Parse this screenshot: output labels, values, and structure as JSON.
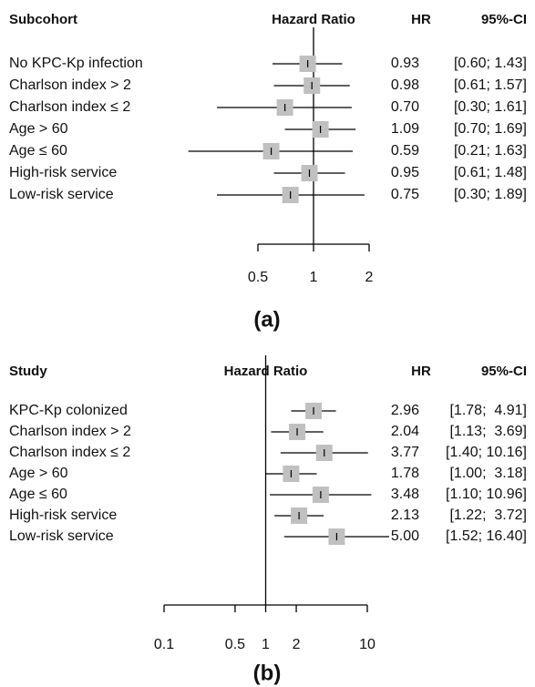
{
  "chart_data": [
    {
      "type": "forest",
      "panel_label": "(a)",
      "row_header": "Subcohort",
      "title": "Hazard Ratio",
      "value_header": "HR",
      "ci_header": "95%-CI",
      "categories": [
        "No KPC-Kp infection",
        "Charlson index > 2",
        "Charlson index ≤ 2",
        "Age > 60",
        "Age ≤ 60",
        "High-risk service",
        "Low-risk service"
      ],
      "values": [
        0.93,
        0.98,
        0.7,
        1.09,
        0.59,
        0.95,
        0.75
      ],
      "value_labels": [
        "0.93",
        "0.98",
        "0.70",
        "1.09",
        "0.59",
        "0.95",
        "0.75"
      ],
      "lower": [
        0.6,
        0.61,
        0.3,
        0.7,
        0.21,
        0.61,
        0.3
      ],
      "upper": [
        1.43,
        1.57,
        1.61,
        1.69,
        1.63,
        1.48,
        1.89
      ],
      "ci_labels": [
        "[0.60; 1.43]",
        "[0.61; 1.57]",
        "[0.30; 1.61]",
        "[0.70; 1.69]",
        "[0.21; 1.63]",
        "[0.61; 1.48]",
        "[0.30; 1.89]"
      ],
      "xlim": [
        0.5,
        2
      ],
      "xticks": [
        0.5,
        1,
        2
      ],
      "log_x": true,
      "reference_line": 1,
      "box_color": "#c0c0c0"
    },
    {
      "type": "forest",
      "panel_label": "(b)",
      "row_header": "Study",
      "title": "Hazard Ratio",
      "value_header": "HR",
      "ci_header": "95%-CI",
      "categories": [
        "KPC-Kp colonized",
        "Charlson index > 2",
        "Charlson index ≤ 2",
        "Age > 60",
        "Age ≤ 60",
        "High-risk service",
        "Low-risk service"
      ],
      "values": [
        2.96,
        2.04,
        3.77,
        1.78,
        3.48,
        2.13,
        5.0
      ],
      "value_labels": [
        "2.96",
        "2.04",
        "3.77",
        "1.78",
        "3.48",
        "2.13",
        "5.00"
      ],
      "lower": [
        1.78,
        1.13,
        1.4,
        1.0,
        1.1,
        1.22,
        1.52
      ],
      "upper": [
        4.91,
        3.69,
        10.16,
        3.18,
        10.96,
        3.72,
        16.4
      ],
      "ci_labels": [
        "[1.78;  4.91]",
        "[1.13;  3.69]",
        "[1.40; 10.16]",
        "[1.00;  3.18]",
        "[1.10; 10.96]",
        "[1.22;  3.72]",
        "[1.52; 16.40]"
      ],
      "xlim": [
        0.1,
        10
      ],
      "xticks": [
        0.1,
        0.5,
        1,
        2,
        10
      ],
      "log_x": true,
      "reference_line": 1,
      "box_color": "#c0c0c0"
    }
  ]
}
